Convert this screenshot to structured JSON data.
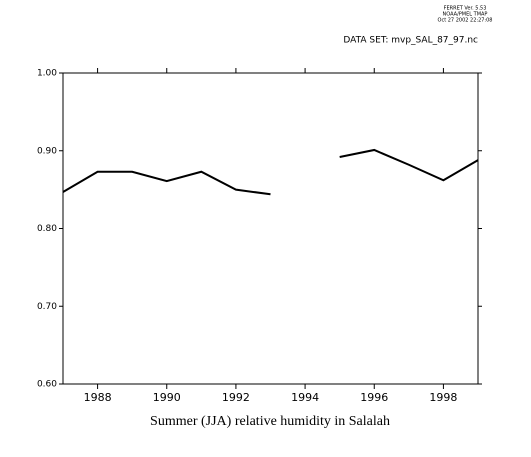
{
  "chart_data": {
    "type": "line",
    "header": [
      "FERRET Ver. 5.53",
      "NOAA/PMEL TMAP",
      "Oct 27 2002 22:27:08"
    ],
    "subtitle": "DATA SET: mvp_SAL_87_97.nc",
    "title": "Summer (JJA) relative humidity in Salalah",
    "x": [
      1987,
      1988,
      1989,
      1990,
      1991,
      1992,
      1993,
      1994,
      1995,
      1996,
      1997,
      1998,
      1999
    ],
    "series": [
      {
        "color": "#000000",
        "values": [
          0.847,
          0.873,
          0.873,
          0.861,
          0.873,
          0.85,
          0.844,
          null,
          0.892,
          0.901,
          0.882,
          0.862,
          0.888
        ]
      }
    ],
    "xlim": [
      1987,
      1999
    ],
    "xticks": [
      1988,
      1990,
      1992,
      1994,
      1996,
      1998
    ],
    "ylim": [
      0.6,
      1.0
    ],
    "yticks": [
      {
        "value": 0.6,
        "label": "0.60"
      },
      {
        "value": 0.7,
        "label": "0.70"
      },
      {
        "value": 0.8,
        "label": "0.80"
      },
      {
        "value": 0.9,
        "label": "0.90"
      },
      {
        "value": 1.0,
        "label": "1.00"
      }
    ]
  }
}
